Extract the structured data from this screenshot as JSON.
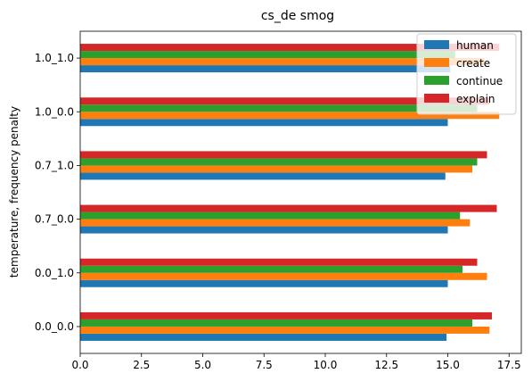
{
  "chart_data": {
    "type": "bar",
    "orientation": "horizontal",
    "title": "cs_de smog",
    "xlabel": "",
    "ylabel": "temperature, frequency penalty",
    "categories": [
      "0.0_0.0",
      "0.0_1.0",
      "0.7_0.0",
      "0.7_1.0",
      "1.0_0.0",
      "1.0_1.0"
    ],
    "xlim": [
      0,
      18.0
    ],
    "xticks": [
      "0.0",
      "2.5",
      "5.0",
      "7.5",
      "10.0",
      "12.5",
      "15.0",
      "17.5"
    ],
    "grid": false,
    "legend_position": "top-right",
    "series": [
      {
        "name": "human",
        "color": "#1f77b4",
        "values": [
          14.95,
          15.0,
          15.0,
          14.9,
          15.0,
          15.1
        ]
      },
      {
        "name": "create",
        "color": "#ff7f0e",
        "values": [
          16.7,
          16.6,
          15.9,
          16.0,
          17.1,
          16.5
        ]
      },
      {
        "name": "continue",
        "color": "#2ca02c",
        "values": [
          16.0,
          15.6,
          15.5,
          16.2,
          16.2,
          15.3
        ]
      },
      {
        "name": "explain",
        "color": "#d62728",
        "values": [
          16.8,
          16.2,
          17.0,
          16.6,
          16.7,
          17.1
        ]
      }
    ]
  }
}
